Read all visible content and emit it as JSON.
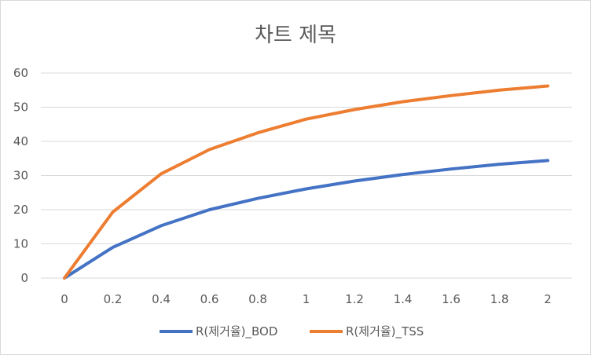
{
  "chart_data": {
    "type": "line",
    "title": "차트 제목",
    "xlabel": "",
    "ylabel": "",
    "x": [
      "0",
      "0.2",
      "0.4",
      "0.6",
      "0.8",
      "1",
      "1.2",
      "1.4",
      "1.6",
      "1.8",
      "2"
    ],
    "ylim": [
      0,
      60
    ],
    "yticks": [
      "0",
      "10",
      "20",
      "30",
      "40",
      "50",
      "60"
    ],
    "grid": true,
    "legend_position": "bottom",
    "series": [
      {
        "name": "R(제거율)_BOD",
        "color": "#4472c4",
        "values": [
          0,
          9.0,
          15.3,
          20.0,
          23.3,
          26.1,
          28.4,
          30.3,
          31.9,
          33.3,
          34.4
        ]
      },
      {
        "name": "R(제거율)_TSS",
        "color": "#ed7d31",
        "values": [
          0,
          19.3,
          30.5,
          37.6,
          42.5,
          46.5,
          49.3,
          51.6,
          53.4,
          55.0,
          56.2
        ]
      }
    ]
  }
}
